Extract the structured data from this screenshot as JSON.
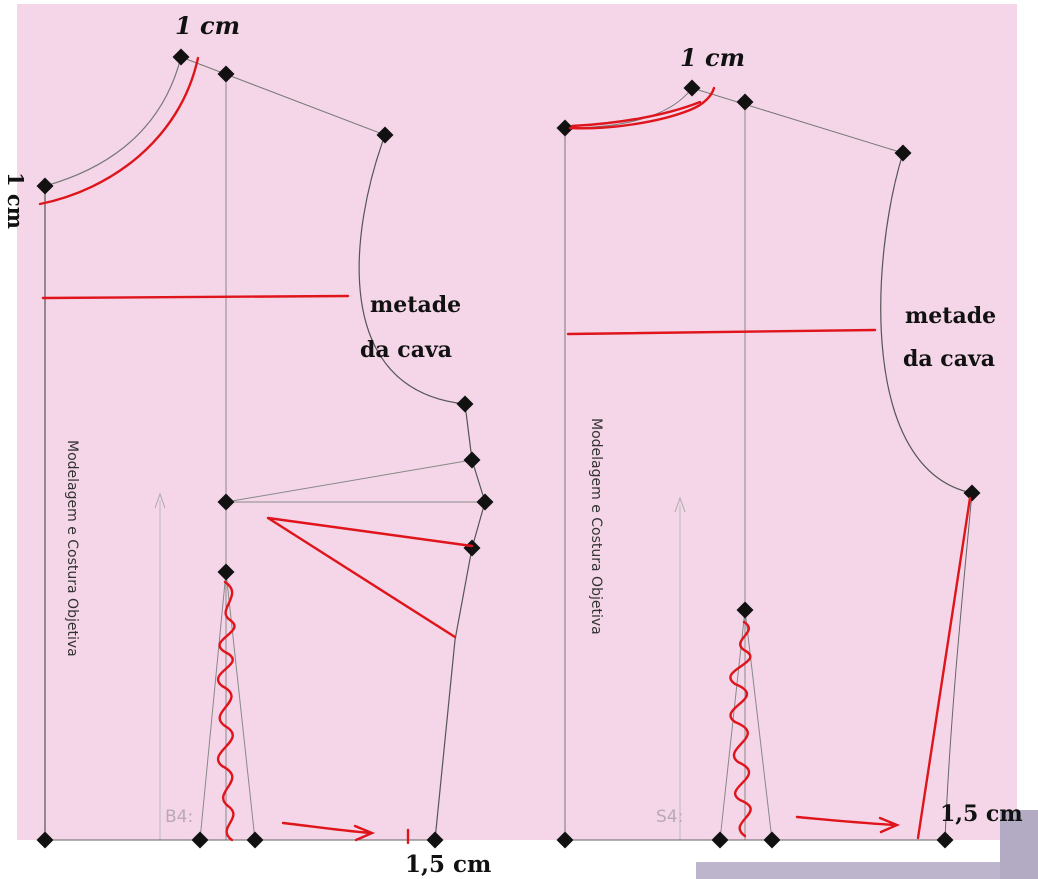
{
  "colors": {
    "paper": "#f4d6e8",
    "guide": "#8d8d8d",
    "outline": "#3a3a3a",
    "marker": "#111111",
    "correction": "#e0141b",
    "scan_edge": "#b7b0c6"
  },
  "left_pattern": {
    "label_top": "1 cm",
    "label_side": "1 cm",
    "label_armhole_1": "metade",
    "label_armhole_2": "da cava",
    "label_bottom": "1,5 cm",
    "watermark": "Modelagem e Costura Objetiva",
    "faint_text": "B4:"
  },
  "right_pattern": {
    "label_top": "1 cm",
    "label_armhole_1": "metade",
    "label_armhole_2": "da cava",
    "label_bottom": "1,5 cm",
    "watermark": "Modelagem e Costura Objetiva",
    "faint_text": "S4:"
  }
}
